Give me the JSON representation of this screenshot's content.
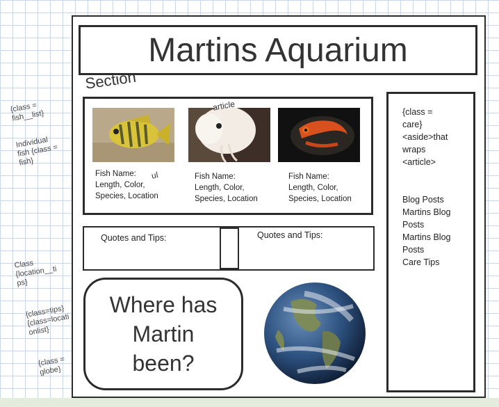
{
  "page": {
    "title": "Martins Aquarium",
    "section_label": "Section",
    "article_label": "article",
    "ul_label": "ul"
  },
  "fish_list": [
    {
      "caption": "Fish Name:\nLength, Color,\nSpecies, Location"
    },
    {
      "caption": "Fish Name:\nLength, Color,\nSpecies, Location"
    },
    {
      "caption": "Fish Name:\nLength, Color,\nSpecies, Location"
    }
  ],
  "aside": {
    "description": "{class =\ncare}\n<aside>that\nwraps\n<article>",
    "links": "Blog Posts\nMartins Blog\nPosts\nMartins Blog\nPosts\nCare Tips"
  },
  "tips": {
    "left_label": "Quotes and Tips:",
    "right_label": "Quotes and Tips:"
  },
  "location": {
    "heading": "Where has\nMartin\nbeen?"
  },
  "margin_notes": {
    "fish_list": "{class =\nfish__list}",
    "individual_fish": "Individual\nfish {class =\nfish}",
    "location_tips": "Class\n{location__ti\nps}",
    "tips_list": "{class=tips}\n{class=locati\nonlist}",
    "globe": "{class =\nglobe}"
  }
}
